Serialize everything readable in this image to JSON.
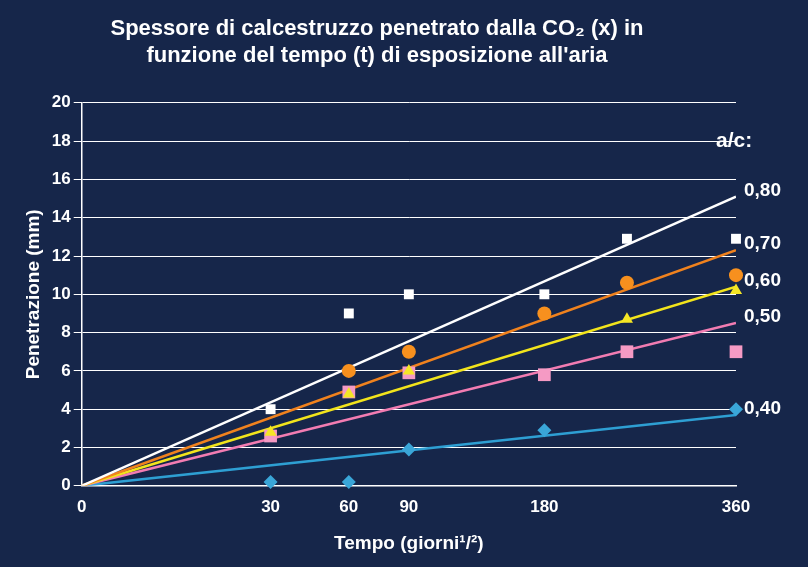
{
  "chart_data": {
    "type": "scatter",
    "title": [
      "Spessore di calcestruzzo penetrato dalla CO₂ (x) in",
      "funzione del tempo (t) di esposizione all'aria"
    ],
    "x_label": "Tempo (giorni¹/²)",
    "y_label": "Penetrazione (mm)",
    "legend_title": "a/c:",
    "xlim": [
      0,
      360
    ],
    "xticks": [
      0,
      30,
      60,
      90,
      180,
      360
    ],
    "ylim": [
      0,
      20
    ],
    "yticks": [
      0,
      2,
      4,
      6,
      8,
      10,
      12,
      14,
      16,
      18,
      20
    ],
    "grid": "y",
    "series": [
      {
        "name": "0,80",
        "type": "line",
        "color": "#ffffff",
        "x": [
          0,
          360
        ],
        "values": [
          0,
          15.1
        ]
      },
      {
        "name": "0,70",
        "type": "line",
        "color": "#f0821e",
        "x": [
          0,
          360
        ],
        "values": [
          0,
          12.3
        ]
      },
      {
        "name": "0,60",
        "type": "line",
        "color": "#f2e41c",
        "x": [
          0,
          360
        ],
        "values": [
          0,
          10.4
        ]
      },
      {
        "name": "0,50",
        "type": "line",
        "color": "#f27cb2",
        "x": [
          0,
          360
        ],
        "values": [
          0,
          8.5
        ]
      },
      {
        "name": "0,40",
        "type": "line",
        "color": "#2e9fd3",
        "x": [
          0,
          360
        ],
        "values": [
          0,
          3.7
        ]
      },
      {
        "type": "scatter",
        "marker": "square",
        "color": "#ffffff",
        "x": [
          30,
          60,
          90,
          180,
          250,
          360
        ],
        "values": [
          4.0,
          9.0,
          10.0,
          10.0,
          12.9,
          12.9
        ]
      },
      {
        "type": "scatter",
        "marker": "circle",
        "color": "#f7901e",
        "x": [
          60,
          90,
          180,
          250,
          360
        ],
        "values": [
          6.0,
          7.0,
          9.0,
          10.6,
          11.0
        ]
      },
      {
        "type": "scatter",
        "marker": "triangle",
        "color": "#f5e625",
        "x": [
          30,
          60,
          90,
          250,
          360
        ],
        "values": [
          2.8,
          4.8,
          6.0,
          8.7,
          10.2
        ]
      },
      {
        "type": "scatter",
        "marker": "square",
        "color": "#f59ac4",
        "x": [
          30,
          60,
          90,
          180,
          250,
          360
        ],
        "values": [
          2.6,
          4.9,
          5.9,
          5.8,
          7.0,
          7.0
        ]
      },
      {
        "type": "scatter",
        "marker": "diamond",
        "color": "#3aa6d8",
        "x": [
          30,
          60,
          90,
          180,
          360
        ],
        "values": [
          0.2,
          0.2,
          1.9,
          2.9,
          4.0
        ]
      }
    ]
  }
}
